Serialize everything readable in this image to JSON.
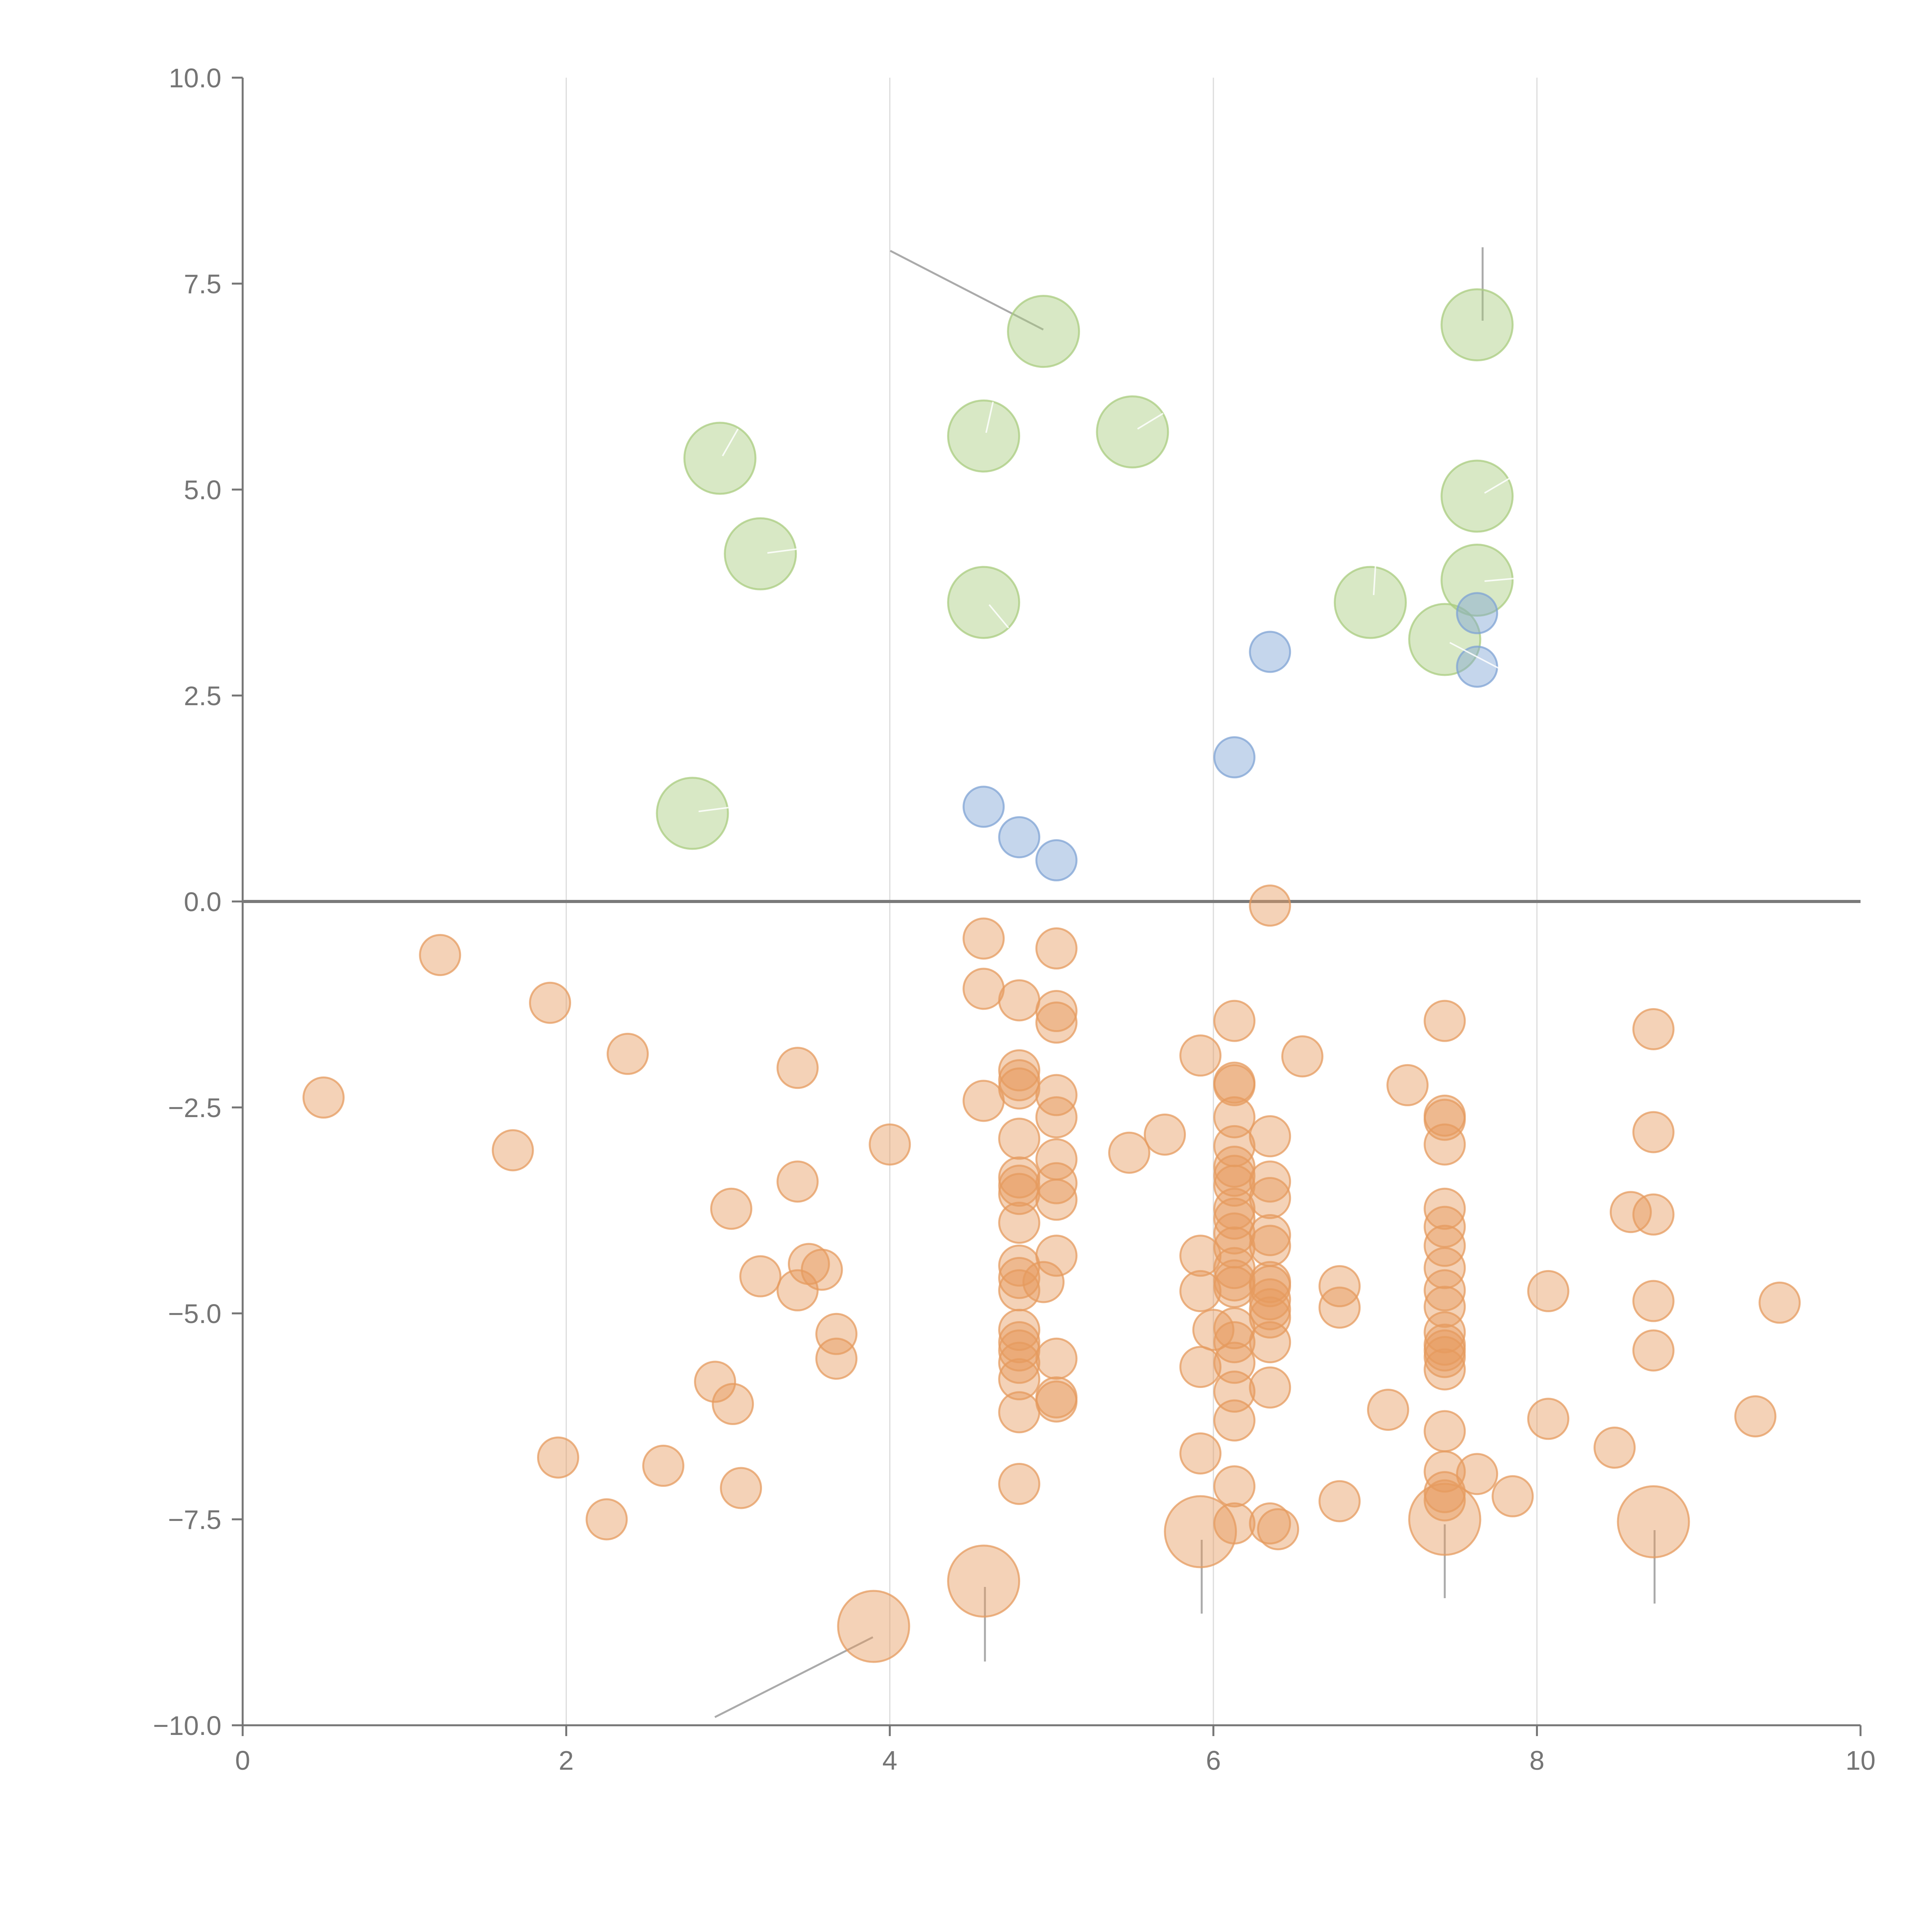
{
  "chart_data": {
    "type": "scatter",
    "title": "",
    "xlabel": "",
    "ylabel": "",
    "xlim": [
      0,
      10
    ],
    "ylim": [
      -10,
      10
    ],
    "x_ticks": [
      0,
      2,
      4,
      6,
      8,
      10
    ],
    "y_ticks": [
      10,
      7.5,
      5,
      2.5,
      0,
      -2.5,
      -5,
      -7.5,
      -10
    ],
    "x_tick_labels": [
      "0",
      "2",
      "4",
      "6",
      "8",
      "10"
    ],
    "y_tick_labels": [
      "10.0",
      "7.5",
      "5.0",
      "2.5",
      "0.0",
      "−2.5",
      "−5.0",
      "−7.5",
      "−10.0"
    ],
    "vertical_grid": true,
    "horizontal_grid": false,
    "reference_line_y": 0,
    "legend": "none",
    "series": [
      {
        "color": "#a9cc7f",
        "size": "large",
        "points": [
          [
            4.95,
            6.92
          ],
          [
            7.63,
            7.0
          ],
          [
            2.95,
            5.38
          ],
          [
            4.58,
            5.65
          ],
          [
            5.5,
            5.7
          ],
          [
            7.63,
            4.92
          ],
          [
            3.2,
            4.22
          ],
          [
            4.58,
            3.63
          ],
          [
            6.97,
            3.63
          ],
          [
            7.63,
            3.9
          ],
          [
            7.43,
            3.18
          ],
          [
            2.78,
            1.07
          ]
        ]
      },
      {
        "color": "#7fa3d4",
        "size": "small",
        "points": [
          [
            6.35,
            3.03
          ],
          [
            7.63,
            3.5
          ],
          [
            7.63,
            2.85
          ],
          [
            6.13,
            1.75
          ],
          [
            4.58,
            1.15
          ],
          [
            4.8,
            0.78
          ],
          [
            5.03,
            0.5
          ]
        ]
      },
      {
        "color": "#e69b5f",
        "size": "small",
        "points": [
          [
            6.35,
            -0.05
          ],
          [
            4.58,
            -0.45
          ],
          [
            5.03,
            -0.57
          ],
          [
            1.22,
            -0.65
          ],
          [
            4.58,
            -1.06
          ],
          [
            1.9,
            -1.23
          ],
          [
            4.8,
            -1.2
          ],
          [
            5.03,
            -1.33
          ],
          [
            5.03,
            -1.47
          ],
          [
            6.13,
            -1.45
          ],
          [
            7.43,
            -1.45
          ],
          [
            8.72,
            -1.55
          ],
          [
            2.38,
            -1.85
          ],
          [
            5.92,
            -1.87
          ],
          [
            6.55,
            -1.88
          ],
          [
            3.43,
            -2.02
          ],
          [
            4.8,
            -2.05
          ],
          [
            4.8,
            -2.17
          ],
          [
            4.8,
            -2.27
          ],
          [
            6.13,
            -2.2
          ],
          [
            6.13,
            -2.23
          ],
          [
            7.2,
            -2.23
          ],
          [
            0.5,
            -2.38
          ],
          [
            4.58,
            -2.42
          ],
          [
            5.03,
            -2.35
          ],
          [
            5.03,
            -2.62
          ],
          [
            7.43,
            -2.6
          ],
          [
            7.43,
            -2.65
          ],
          [
            6.13,
            -2.62
          ],
          [
            5.7,
            -2.83
          ],
          [
            6.35,
            -2.85
          ],
          [
            8.72,
            -2.8
          ],
          [
            4.8,
            -2.88
          ],
          [
            4.0,
            -2.95
          ],
          [
            7.43,
            -2.95
          ],
          [
            1.67,
            -3.02
          ],
          [
            5.48,
            -3.05
          ],
          [
            6.13,
            -2.97
          ],
          [
            5.03,
            -3.13
          ],
          [
            6.13,
            -3.22
          ],
          [
            6.13,
            -3.33
          ],
          [
            6.13,
            -3.45
          ],
          [
            4.8,
            -3.35
          ],
          [
            4.8,
            -3.45
          ],
          [
            4.8,
            -3.55
          ],
          [
            5.03,
            -3.42
          ],
          [
            5.03,
            -3.62
          ],
          [
            3.43,
            -3.4
          ],
          [
            6.35,
            -3.4
          ],
          [
            6.35,
            -3.6
          ],
          [
            6.13,
            -3.73
          ],
          [
            6.13,
            -3.85
          ],
          [
            7.43,
            -3.73
          ],
          [
            3.02,
            -3.73
          ],
          [
            8.58,
            -3.77
          ],
          [
            8.72,
            -3.8
          ],
          [
            4.8,
            -3.9
          ],
          [
            7.43,
            -3.95
          ],
          [
            6.13,
            -4.03
          ],
          [
            6.35,
            -4.05
          ],
          [
            6.35,
            -4.18
          ],
          [
            6.13,
            -4.2
          ],
          [
            7.43,
            -4.18
          ],
          [
            5.92,
            -4.3
          ],
          [
            5.03,
            -4.3
          ],
          [
            3.5,
            -4.4
          ],
          [
            3.58,
            -4.47
          ],
          [
            4.8,
            -4.42
          ],
          [
            6.13,
            -4.45
          ],
          [
            7.43,
            -4.45
          ],
          [
            3.2,
            -4.55
          ],
          [
            4.8,
            -4.57
          ],
          [
            6.13,
            -4.6
          ],
          [
            6.35,
            -4.62
          ],
          [
            4.95,
            -4.62
          ],
          [
            6.13,
            -4.68
          ],
          [
            6.35,
            -4.67
          ],
          [
            4.8,
            -4.72
          ],
          [
            3.43,
            -4.72
          ],
          [
            5.92,
            -4.73
          ],
          [
            7.43,
            -4.72
          ],
          [
            6.78,
            -4.67
          ],
          [
            8.07,
            -4.73
          ],
          [
            6.35,
            -4.83
          ],
          [
            6.35,
            -4.95
          ],
          [
            7.43,
            -4.92
          ],
          [
            6.78,
            -4.93
          ],
          [
            8.72,
            -4.85
          ],
          [
            9.5,
            -4.87
          ],
          [
            6.35,
            -5.05
          ],
          [
            6.13,
            -5.18
          ],
          [
            6.0,
            -5.2
          ],
          [
            3.67,
            -5.25
          ],
          [
            4.8,
            -5.2
          ],
          [
            7.43,
            -5.23
          ],
          [
            4.8,
            -5.35
          ],
          [
            6.13,
            -5.35
          ],
          [
            6.35,
            -5.35
          ],
          [
            7.43,
            -5.38
          ],
          [
            7.43,
            -5.45
          ],
          [
            4.8,
            -5.45
          ],
          [
            7.43,
            -5.53
          ],
          [
            8.72,
            -5.45
          ],
          [
            3.67,
            -5.55
          ],
          [
            5.03,
            -5.55
          ],
          [
            4.8,
            -5.6
          ],
          [
            5.92,
            -5.65
          ],
          [
            6.13,
            -5.6
          ],
          [
            7.43,
            -5.68
          ],
          [
            4.8,
            -5.8
          ],
          [
            2.92,
            -5.83
          ],
          [
            6.35,
            -5.9
          ],
          [
            6.13,
            -5.95
          ],
          [
            5.03,
            -6.02
          ],
          [
            5.03,
            -6.07
          ],
          [
            3.03,
            -6.1
          ],
          [
            4.8,
            -6.2
          ],
          [
            7.08,
            -6.17
          ],
          [
            9.35,
            -6.25
          ],
          [
            8.07,
            -6.28
          ],
          [
            6.13,
            -6.3
          ],
          [
            7.43,
            -6.43
          ],
          [
            8.48,
            -6.63
          ],
          [
            1.95,
            -6.75
          ],
          [
            5.92,
            -6.7
          ],
          [
            2.6,
            -6.85
          ],
          [
            7.43,
            -6.92
          ],
          [
            7.63,
            -6.95
          ],
          [
            3.08,
            -7.12
          ],
          [
            4.8,
            -7.07
          ],
          [
            6.13,
            -7.1
          ],
          [
            7.85,
            -7.22
          ],
          [
            7.43,
            -7.27
          ],
          [
            6.78,
            -7.28
          ],
          [
            7.43,
            -7.17
          ],
          [
            2.25,
            -7.5
          ],
          [
            6.13,
            -7.55
          ],
          [
            6.35,
            -7.55
          ],
          [
            6.4,
            -7.62
          ]
        ]
      },
      {
        "color": "#e69b5f",
        "size": "large",
        "points": [
          [
            5.92,
            -7.65
          ],
          [
            7.43,
            -7.5
          ],
          [
            8.72,
            -7.53
          ],
          [
            4.58,
            -8.25
          ],
          [
            3.9,
            -8.8
          ]
        ]
      }
    ]
  }
}
